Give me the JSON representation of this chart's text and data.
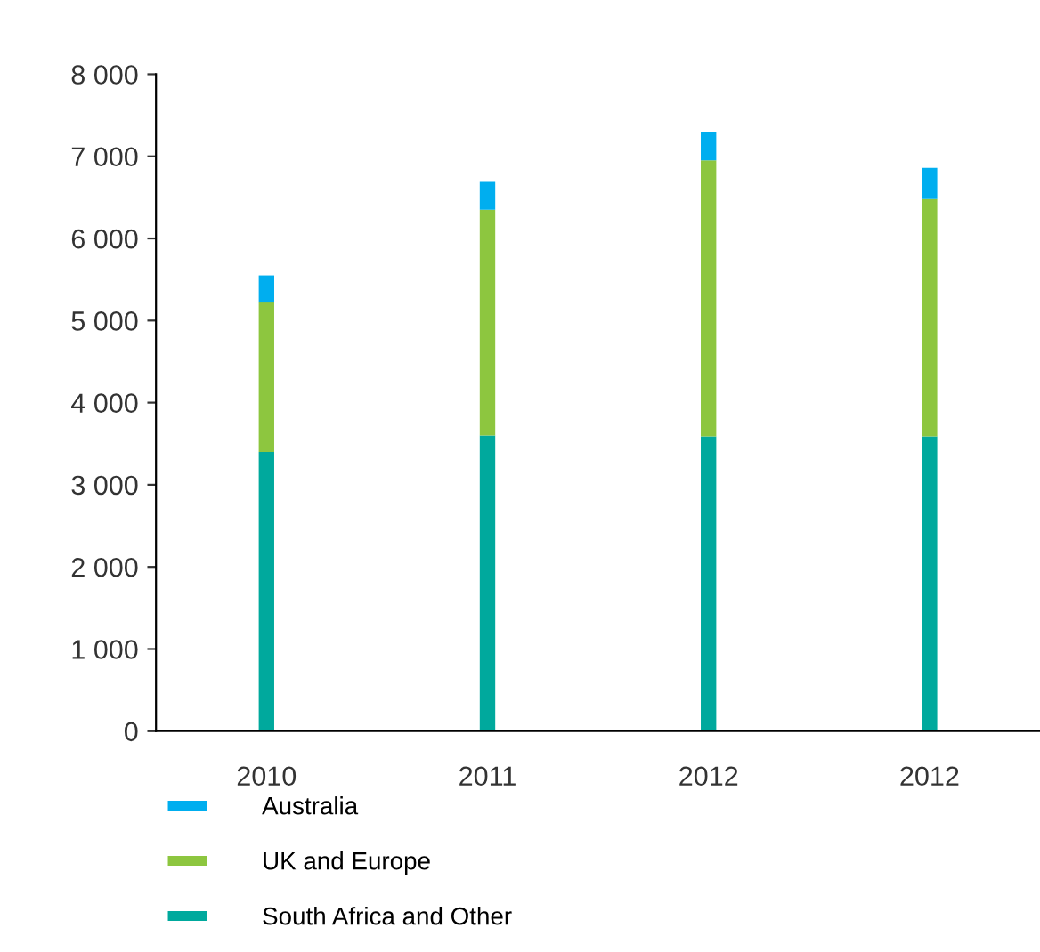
{
  "chart_data": {
    "type": "bar",
    "stacked": true,
    "categories": [
      "2010",
      "2011",
      "2012",
      "2012"
    ],
    "series": [
      {
        "name": "South Africa and Other",
        "color": "#00a99d",
        "values": [
          3400,
          3600,
          3590,
          3590
        ]
      },
      {
        "name": "UK and Europe",
        "color": "#8dc63f",
        "values": [
          1830,
          2750,
          3360,
          2890
        ]
      },
      {
        "name": "Australia",
        "color": "#00aeef",
        "values": [
          320,
          350,
          350,
          380
        ]
      }
    ],
    "ylim": [
      0,
      8000
    ],
    "yticks": [
      0,
      {
        "value": 1000,
        "label": "1 000"
      },
      {
        "value": 2000,
        "label": "2 000"
      },
      {
        "value": 3000,
        "label": "3 000"
      },
      {
        "value": 4000,
        "label": "4 000"
      },
      {
        "value": 5000,
        "label": "5 000"
      },
      {
        "value": 6000,
        "label": "6 000"
      },
      {
        "value": 7000,
        "label": "7 000"
      },
      {
        "value": 8000,
        "label": "8 000"
      }
    ],
    "grid": false,
    "legend": "bottom"
  }
}
